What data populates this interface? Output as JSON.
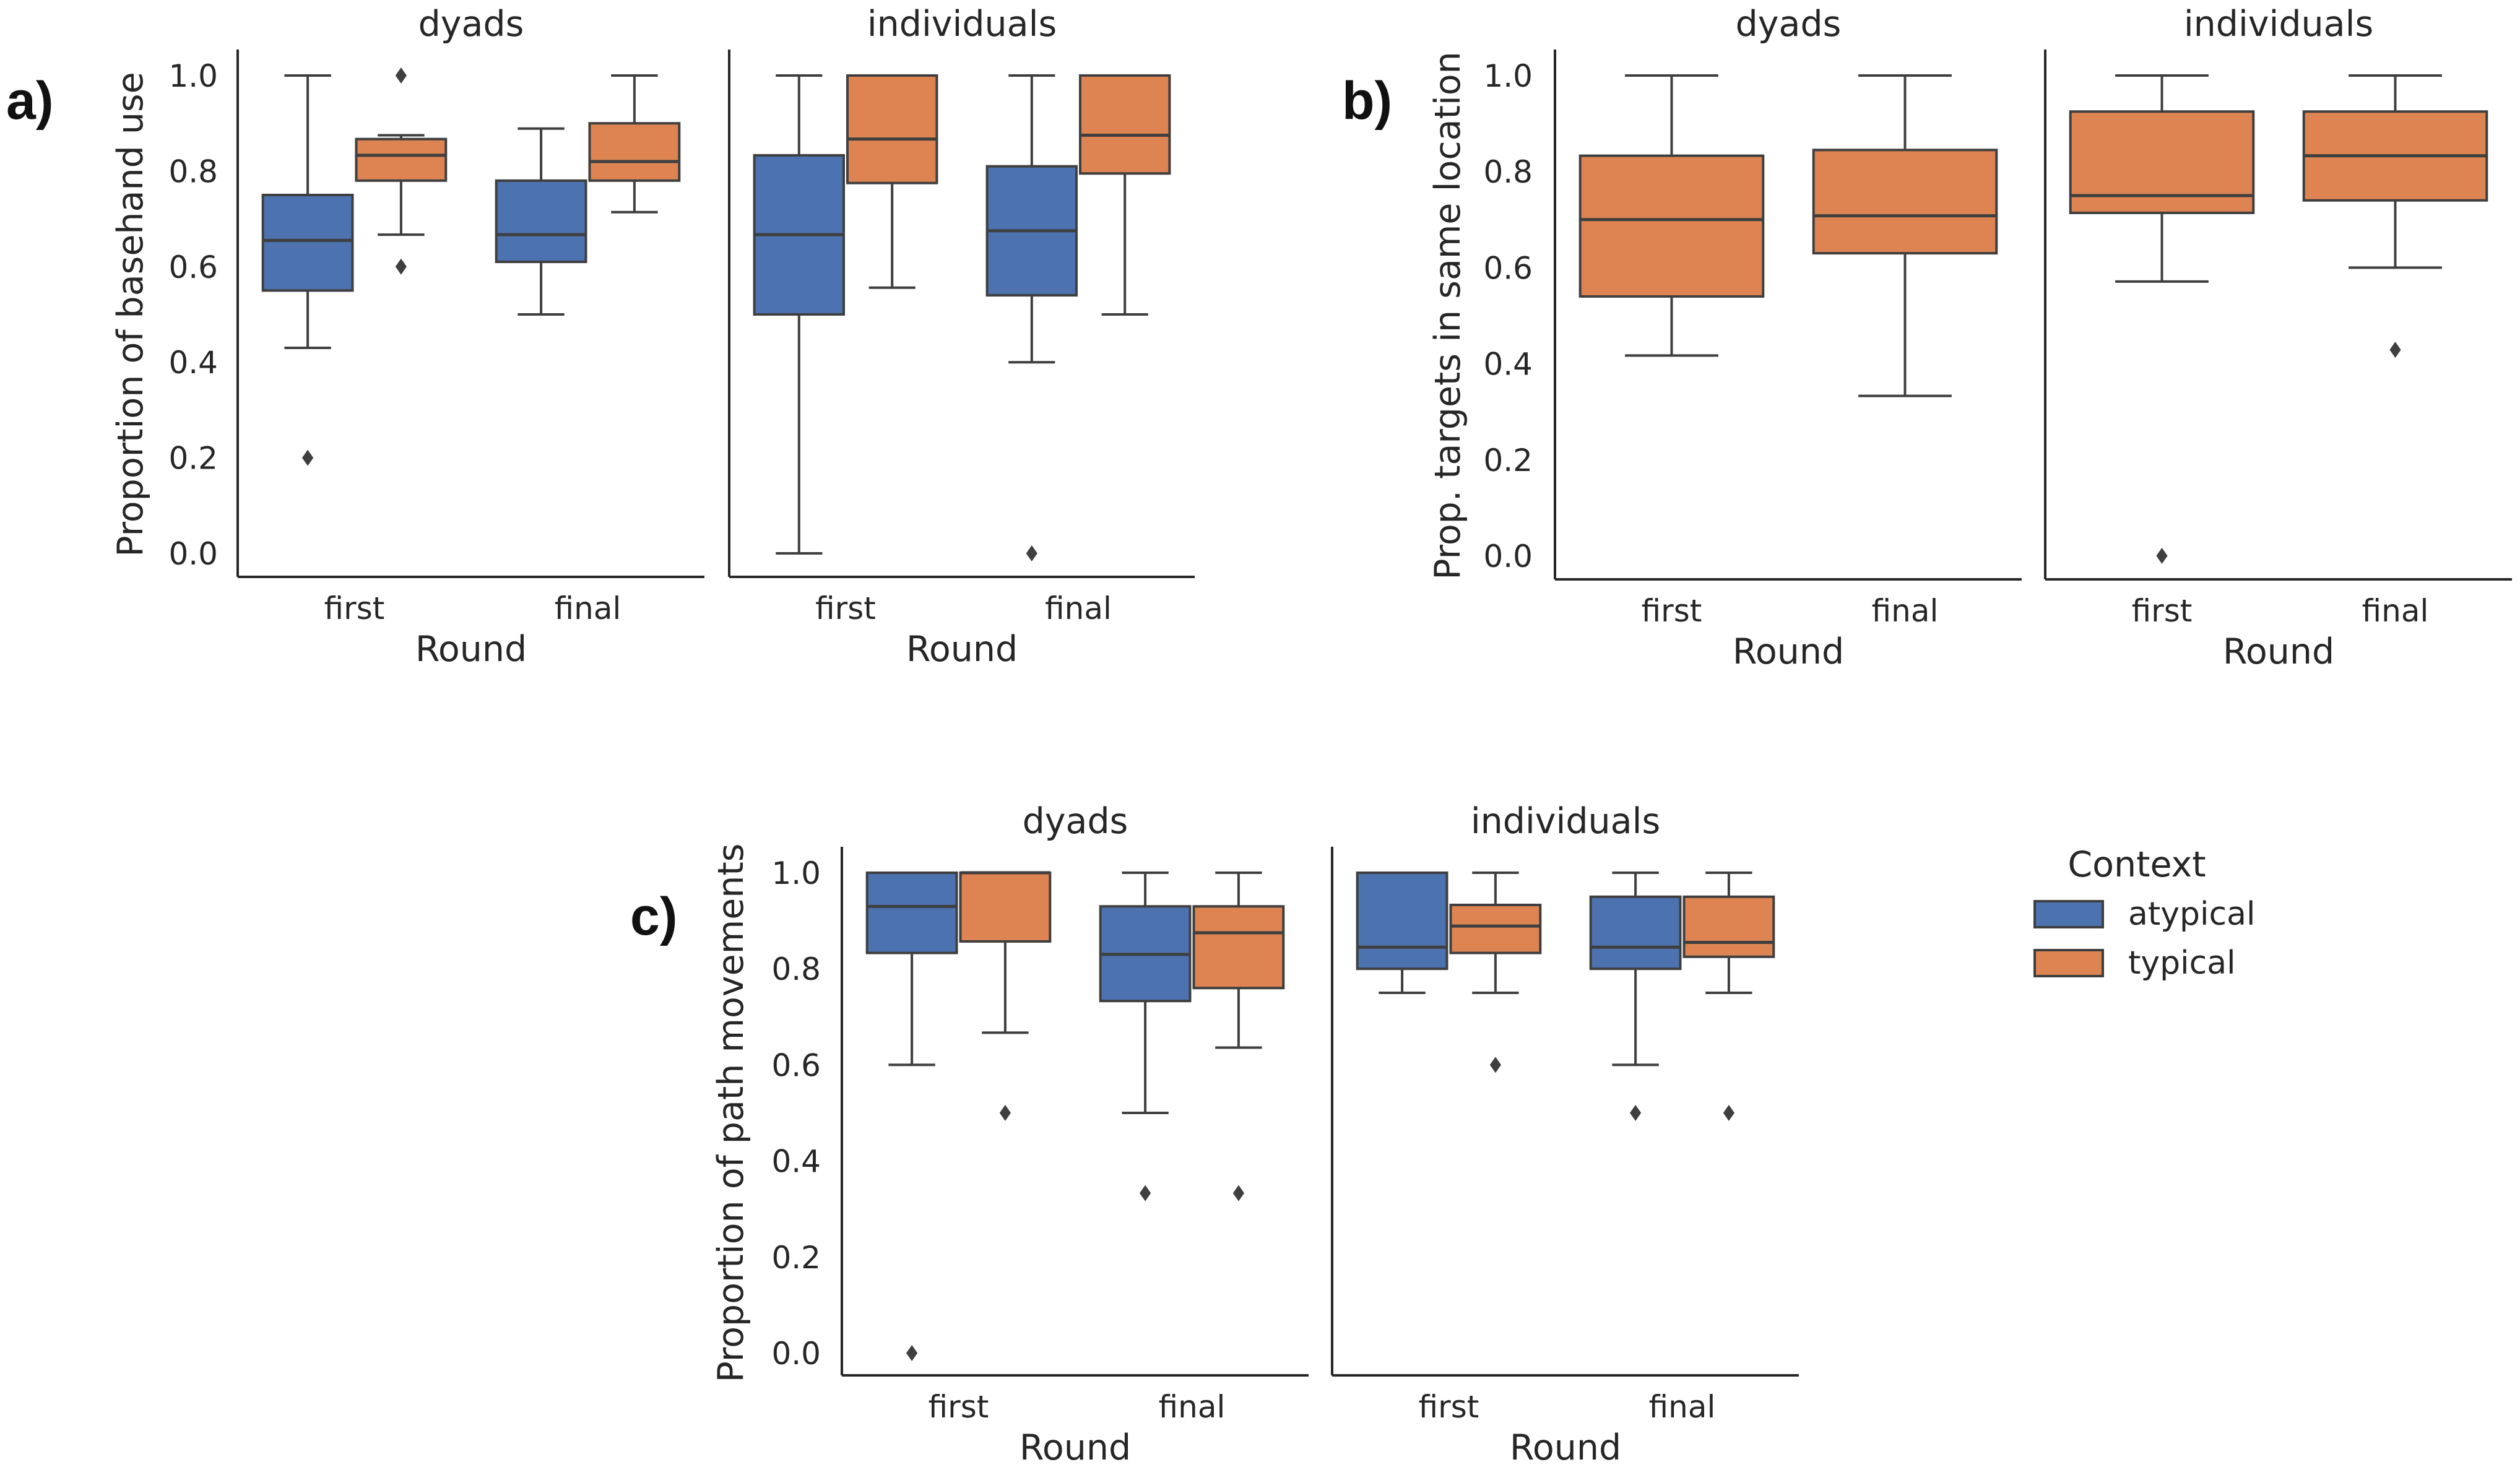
{
  "legend": {
    "title": "Context",
    "items": [
      {
        "label": "atypical",
        "color": "#4c72b0"
      },
      {
        "label": "typical",
        "color": "#dd8452"
      }
    ]
  },
  "colors": {
    "atypical": "#4c72b0",
    "typical": "#dd8452",
    "line": "#3f3f3f",
    "axis": "#262626"
  },
  "chart_data": [
    {
      "panel": "a)",
      "type": "box",
      "ylabel": "Proportion of basehand use",
      "xlabel": "Round",
      "categories": [
        "first",
        "final"
      ],
      "yticks": [
        0.0,
        0.2,
        0.4,
        0.6,
        0.8,
        1.0
      ],
      "ytick_labels": [
        "0.0",
        "0.2",
        "0.4",
        "0.6",
        "0.8",
        "1.0"
      ],
      "ylim": [
        -0.05,
        1.04
      ],
      "grid": false,
      "facets": [
        {
          "title": "dyads",
          "boxes": [
            {
              "round": "first",
              "context": "atypical",
              "whislo": 0.43,
              "q1": 0.55,
              "med": 0.655,
              "q3": 0.75,
              "whishi": 1.0,
              "fliers": [
                0.2
              ]
            },
            {
              "round": "first",
              "context": "typical",
              "whislo": 0.667,
              "q1": 0.78,
              "med": 0.833,
              "q3": 0.867,
              "whishi": 0.875,
              "fliers": [
                1.0,
                0.6
              ]
            },
            {
              "round": "final",
              "context": "atypical",
              "whislo": 0.5,
              "q1": 0.61,
              "med": 0.667,
              "q3": 0.78,
              "whishi": 0.889,
              "fliers": []
            },
            {
              "round": "final",
              "context": "typical",
              "whislo": 0.714,
              "q1": 0.78,
              "med": 0.82,
              "q3": 0.9,
              "whishi": 1.0,
              "fliers": []
            }
          ]
        },
        {
          "title": "individuals",
          "boxes": [
            {
              "round": "first",
              "context": "atypical",
              "whislo": 0.0,
              "q1": 0.5,
              "med": 0.667,
              "q3": 0.833,
              "whishi": 1.0,
              "fliers": []
            },
            {
              "round": "first",
              "context": "typical",
              "whislo": 0.556,
              "q1": 0.775,
              "med": 0.867,
              "q3": 1.0,
              "whishi": 1.0,
              "fliers": []
            },
            {
              "round": "final",
              "context": "atypical",
              "whislo": 0.4,
              "q1": 0.54,
              "med": 0.675,
              "q3": 0.81,
              "whishi": 1.0,
              "fliers": [
                0.0
              ]
            },
            {
              "round": "final",
              "context": "typical",
              "whislo": 0.5,
              "q1": 0.795,
              "med": 0.875,
              "q3": 1.0,
              "whishi": 1.0,
              "fliers": []
            }
          ]
        }
      ]
    },
    {
      "panel": "b)",
      "type": "box",
      "ylabel": "Prop. targets in same location",
      "xlabel": "Round",
      "categories": [
        "first",
        "final"
      ],
      "yticks": [
        0.0,
        0.2,
        0.4,
        0.6,
        0.8,
        1.0
      ],
      "ytick_labels": [
        "0.0",
        "0.2",
        "0.4",
        "0.6",
        "0.8",
        "1.0"
      ],
      "ylim": [
        -0.05,
        1.04
      ],
      "grid": false,
      "facets": [
        {
          "title": "dyads",
          "boxes": [
            {
              "round": "first",
              "context": "typical",
              "whislo": 0.417,
              "q1": 0.54,
              "med": 0.7,
              "q3": 0.833,
              "whishi": 1.0,
              "fliers": []
            },
            {
              "round": "final",
              "context": "typical",
              "whislo": 0.333,
              "q1": 0.63,
              "med": 0.708,
              "q3": 0.845,
              "whishi": 1.0,
              "fliers": []
            }
          ]
        },
        {
          "title": "individuals",
          "boxes": [
            {
              "round": "first",
              "context": "typical",
              "whislo": 0.571,
              "q1": 0.714,
              "med": 0.75,
              "q3": 0.925,
              "whishi": 1.0,
              "fliers": [
                0.0
              ]
            },
            {
              "round": "final",
              "context": "typical",
              "whislo": 0.6,
              "q1": 0.74,
              "med": 0.833,
              "q3": 0.925,
              "whishi": 1.0,
              "fliers": [
                0.429
              ]
            }
          ]
        }
      ]
    },
    {
      "panel": "c)",
      "type": "box",
      "ylabel": "Proportion of path movements",
      "xlabel": "Round",
      "categories": [
        "first",
        "final"
      ],
      "yticks": [
        0.0,
        0.2,
        0.4,
        0.6,
        0.8,
        1.0
      ],
      "ytick_labels": [
        "0.0",
        "0.2",
        "0.4",
        "0.6",
        "0.8",
        "1.0"
      ],
      "ylim": [
        -0.05,
        1.04
      ],
      "grid": false,
      "facets": [
        {
          "title": "dyads",
          "boxes": [
            {
              "round": "first",
              "context": "atypical",
              "whislo": 0.6,
              "q1": 0.833,
              "med": 0.93,
              "q3": 1.0,
              "whishi": 1.0,
              "fliers": [
                0.0
              ]
            },
            {
              "round": "first",
              "context": "typical",
              "whislo": 0.667,
              "q1": 0.857,
              "med": 1.0,
              "q3": 1.0,
              "whishi": 1.0,
              "fliers": [
                0.5
              ]
            },
            {
              "round": "final",
              "context": "atypical",
              "whislo": 0.5,
              "q1": 0.733,
              "med": 0.83,
              "q3": 0.93,
              "whishi": 1.0,
              "fliers": [
                0.333
              ]
            },
            {
              "round": "final",
              "context": "typical",
              "whislo": 0.636,
              "q1": 0.76,
              "med": 0.875,
              "q3": 0.93,
              "whishi": 1.0,
              "fliers": [
                0.333
              ]
            }
          ]
        },
        {
          "title": "individuals",
          "boxes": [
            {
              "round": "first",
              "context": "atypical",
              "whislo": 0.75,
              "q1": 0.8,
              "med": 0.845,
              "q3": 1.0,
              "whishi": 1.0,
              "fliers": []
            },
            {
              "round": "first",
              "context": "typical",
              "whislo": 0.75,
              "q1": 0.833,
              "med": 0.889,
              "q3": 0.933,
              "whishi": 1.0,
              "fliers": [
                0.6
              ]
            },
            {
              "round": "final",
              "context": "atypical",
              "whislo": 0.6,
              "q1": 0.8,
              "med": 0.845,
              "q3": 0.95,
              "whishi": 1.0,
              "fliers": [
                0.5
              ]
            },
            {
              "round": "final",
              "context": "typical",
              "whislo": 0.75,
              "q1": 0.825,
              "med": 0.855,
              "q3": 0.95,
              "whishi": 1.0,
              "fliers": [
                0.5
              ]
            }
          ]
        }
      ]
    }
  ]
}
